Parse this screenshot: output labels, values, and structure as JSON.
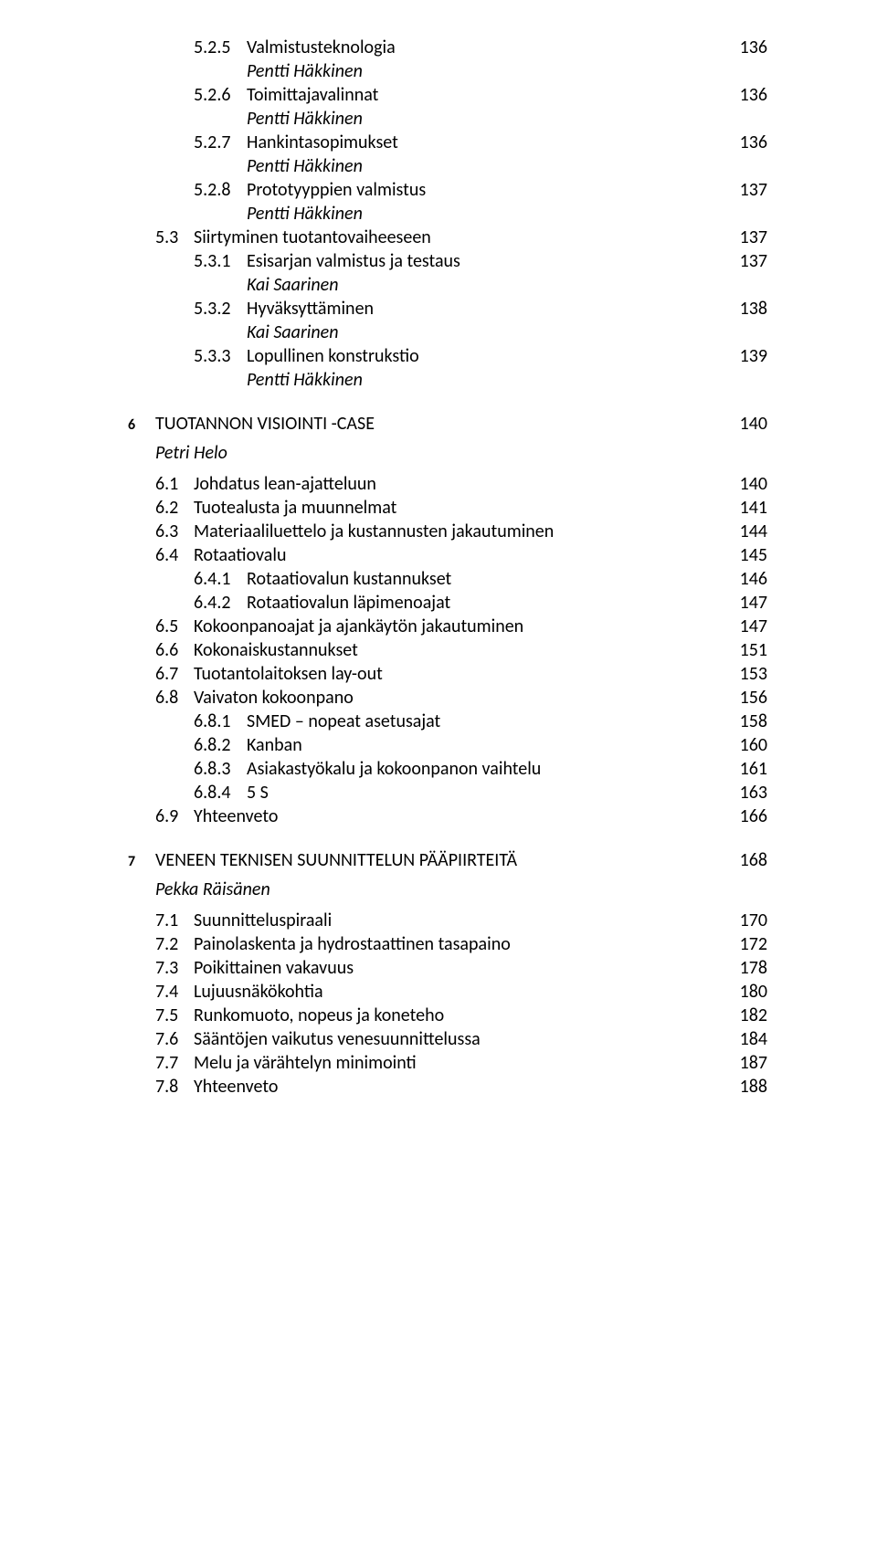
{
  "font_sizes": {
    "body": 20,
    "chapter": 20
  },
  "colors": {
    "text": "#000000",
    "bg": "#ffffff"
  },
  "entries": [
    {
      "type": "level2",
      "num": "5.2.5",
      "title": "Valmistusteknologia",
      "page": "136"
    },
    {
      "type": "sub-author",
      "title": "Pentti Häkkinen"
    },
    {
      "type": "level2",
      "num": "5.2.6",
      "title": "Toimittajavalinnat",
      "page": "136"
    },
    {
      "type": "sub-author",
      "title": "Pentti Häkkinen"
    },
    {
      "type": "level2",
      "num": "5.2.7",
      "title": "Hankintasopimukset",
      "page": "136"
    },
    {
      "type": "sub-author",
      "title": "Pentti Häkkinen"
    },
    {
      "type": "level2",
      "num": "5.2.8",
      "title": "Prototyyppien valmistus",
      "page": "137"
    },
    {
      "type": "sub-author",
      "title": "Pentti Häkkinen"
    },
    {
      "type": "level1",
      "num": "5.3",
      "title": "Siirtyminen tuotantovaiheeseen",
      "page": "137"
    },
    {
      "type": "level2",
      "num": "5.3.1",
      "title": "Esisarjan valmistus ja testaus",
      "page": "137"
    },
    {
      "type": "sub-author",
      "title": "Kai Saarinen"
    },
    {
      "type": "level2",
      "num": "5.3.2",
      "title": "Hyväksyttäminen",
      "page": "138"
    },
    {
      "type": "sub-author",
      "title": "Kai Saarinen"
    },
    {
      "type": "level2",
      "num": "5.3.3",
      "title": "Lopullinen konstrukstio",
      "page": "139"
    },
    {
      "type": "sub-author",
      "title": "Pentti Häkkinen"
    },
    {
      "type": "chapter",
      "num": "6",
      "title": "TUOTANNON VISIOINTI -CASE",
      "page": "140"
    },
    {
      "type": "chapter-author",
      "title": "Petri Helo"
    },
    {
      "type": "level1",
      "num": "6.1",
      "title": "Johdatus lean-ajatteluun",
      "page": "140"
    },
    {
      "type": "level1",
      "num": "6.2",
      "title": "Tuotealusta ja muunnelmat",
      "page": "141"
    },
    {
      "type": "level1",
      "num": "6.3",
      "title": "Materiaaliluettelo ja kustannusten jakautuminen",
      "page": "144"
    },
    {
      "type": "level1",
      "num": "6.4",
      "title": "Rotaatiovalu",
      "page": "145"
    },
    {
      "type": "level2",
      "num": "6.4.1",
      "title": "Rotaatiovalun kustannukset",
      "page": "146"
    },
    {
      "type": "level2",
      "num": "6.4.2",
      "title": "Rotaatiovalun läpimenoajat",
      "page": "147"
    },
    {
      "type": "level1",
      "num": "6.5",
      "title": "Kokoonpanoajat ja ajankäytön jakautuminen",
      "page": "147"
    },
    {
      "type": "level1",
      "num": "6.6",
      "title": "Kokonaiskustannukset",
      "page": "151"
    },
    {
      "type": "level1",
      "num": "6.7",
      "title": "Tuotantolaitoksen lay-out",
      "page": "153"
    },
    {
      "type": "level1",
      "num": "6.8",
      "title": "Vaivaton kokoonpano",
      "page": "156"
    },
    {
      "type": "level2",
      "num": "6.8.1",
      "title": "SMED – nopeat asetusajat",
      "page": "158"
    },
    {
      "type": "level2",
      "num": "6.8.2",
      "title": "Kanban",
      "page": "160"
    },
    {
      "type": "level2",
      "num": "6.8.3",
      "title": "Asiakastyökalu ja kokoonpanon vaihtelu",
      "page": "161"
    },
    {
      "type": "level2",
      "num": "6.8.4",
      "title": "5 S",
      "page": "163"
    },
    {
      "type": "level1",
      "num": "6.9",
      "title": "Yhteenveto",
      "page": "166"
    },
    {
      "type": "chapter",
      "num": "7",
      "title": "VENEEN TEKNISEN SUUNNITTELUN PÄÄPIIRTEITÄ",
      "page": "168"
    },
    {
      "type": "chapter-author",
      "title": "Pekka Räisänen"
    },
    {
      "type": "level1",
      "num": "7.1",
      "title": "Suunnitteluspiraali",
      "page": "170"
    },
    {
      "type": "level1",
      "num": "7.2",
      "title": "Painolaskenta ja hydrostaattinen tasapaino",
      "page": "172"
    },
    {
      "type": "level1",
      "num": "7.3",
      "title": "Poikittainen vakavuus",
      "page": "178"
    },
    {
      "type": "level1",
      "num": "7.4",
      "title": "Lujuusnäkökohtia",
      "page": "180"
    },
    {
      "type": "level1",
      "num": "7.5",
      "title": "Runkomuoto, nopeus ja koneteho",
      "page": "182"
    },
    {
      "type": "level1",
      "num": "7.6",
      "title": "Sääntöjen vaikutus venesuunnittelussa",
      "page": "184"
    },
    {
      "type": "level1",
      "num": "7.7",
      "title": "Melu ja värähtelyn minimointi",
      "page": "187"
    },
    {
      "type": "level1",
      "num": "7.8",
      "title": "Yhteenveto",
      "page": "188"
    }
  ]
}
